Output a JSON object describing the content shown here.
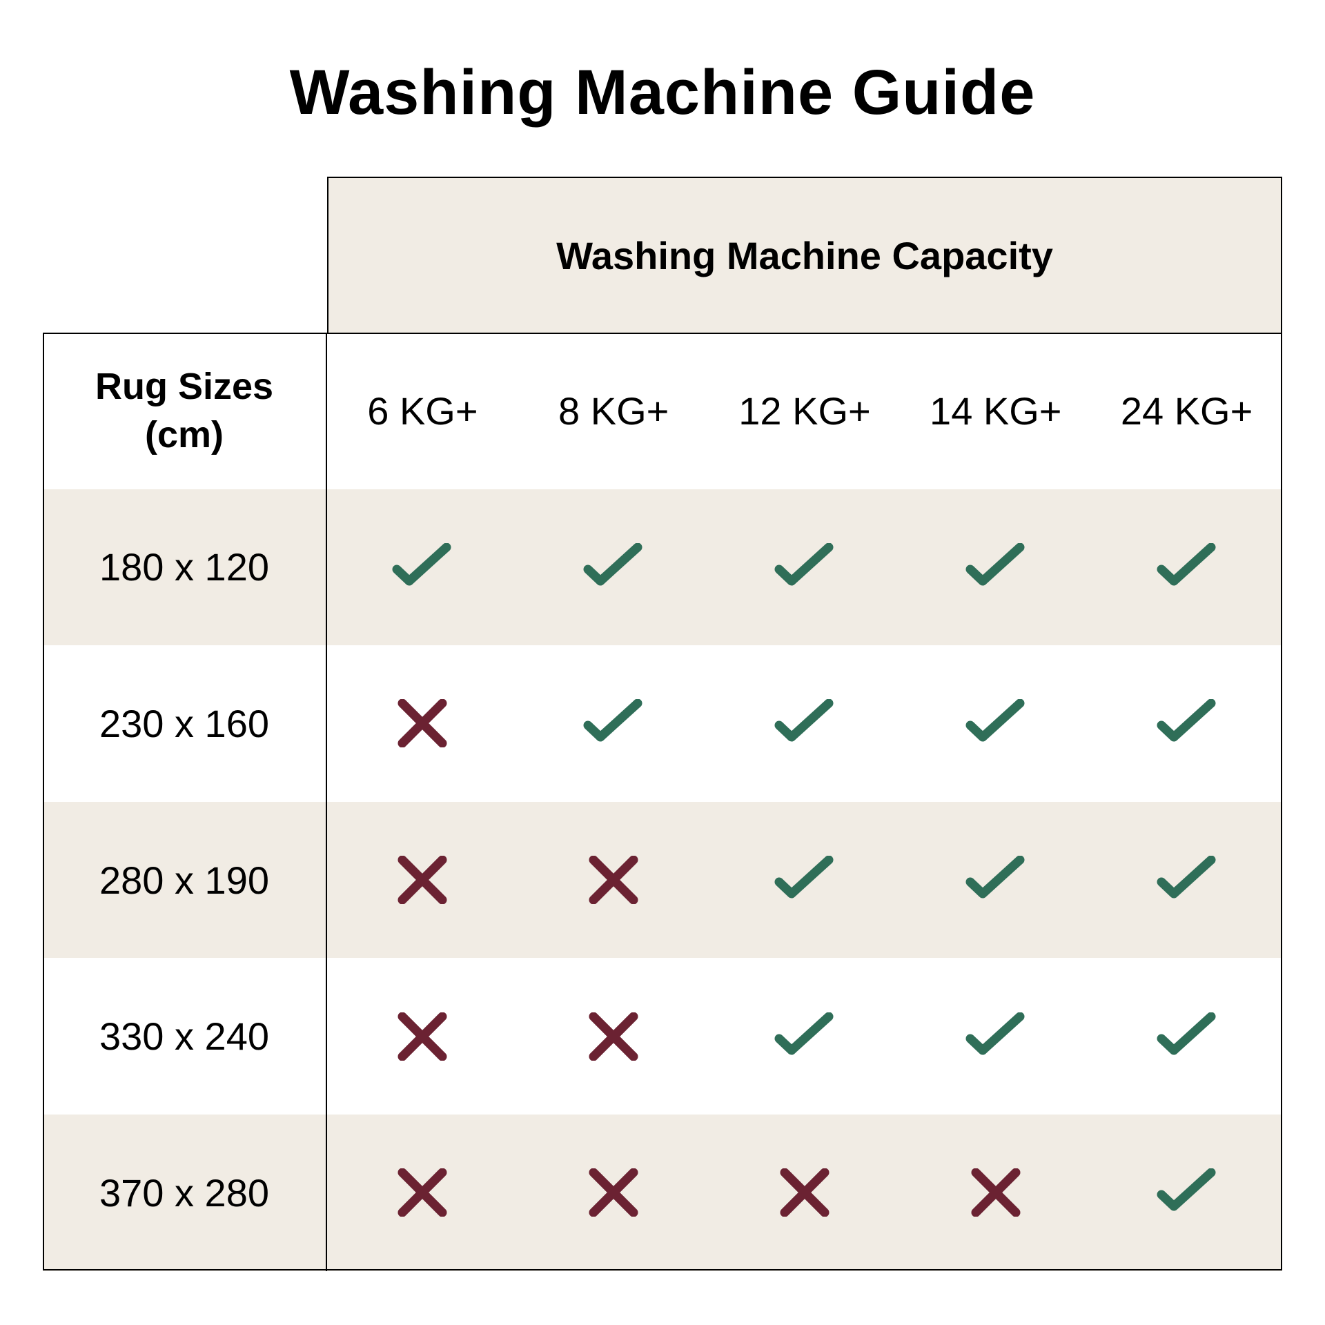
{
  "title": "Washing Machine Guide",
  "capacity_header": "Washing Machine Capacity",
  "row_header": [
    "Rug Sizes",
    "(cm)"
  ],
  "columns": [
    "6 KG+",
    "8 KG+",
    "12 KG+",
    "14 KG+",
    "24 KG+"
  ],
  "rows": [
    {
      "size": "180 x 120",
      "fits": [
        true,
        true,
        true,
        true,
        true
      ]
    },
    {
      "size": "230 x 160",
      "fits": [
        false,
        true,
        true,
        true,
        true
      ]
    },
    {
      "size": "280 x 190",
      "fits": [
        false,
        false,
        true,
        true,
        true
      ]
    },
    {
      "size": "330 x 240",
      "fits": [
        false,
        false,
        true,
        true,
        true
      ]
    },
    {
      "size": "370 x 280",
      "fits": [
        false,
        false,
        false,
        false,
        true
      ]
    }
  ],
  "colors": {
    "check": "#2f6e58",
    "cross": "#6b2232",
    "shade": "#f1ece4"
  },
  "icons": {
    "yes": "check-icon",
    "no": "cross-icon"
  }
}
